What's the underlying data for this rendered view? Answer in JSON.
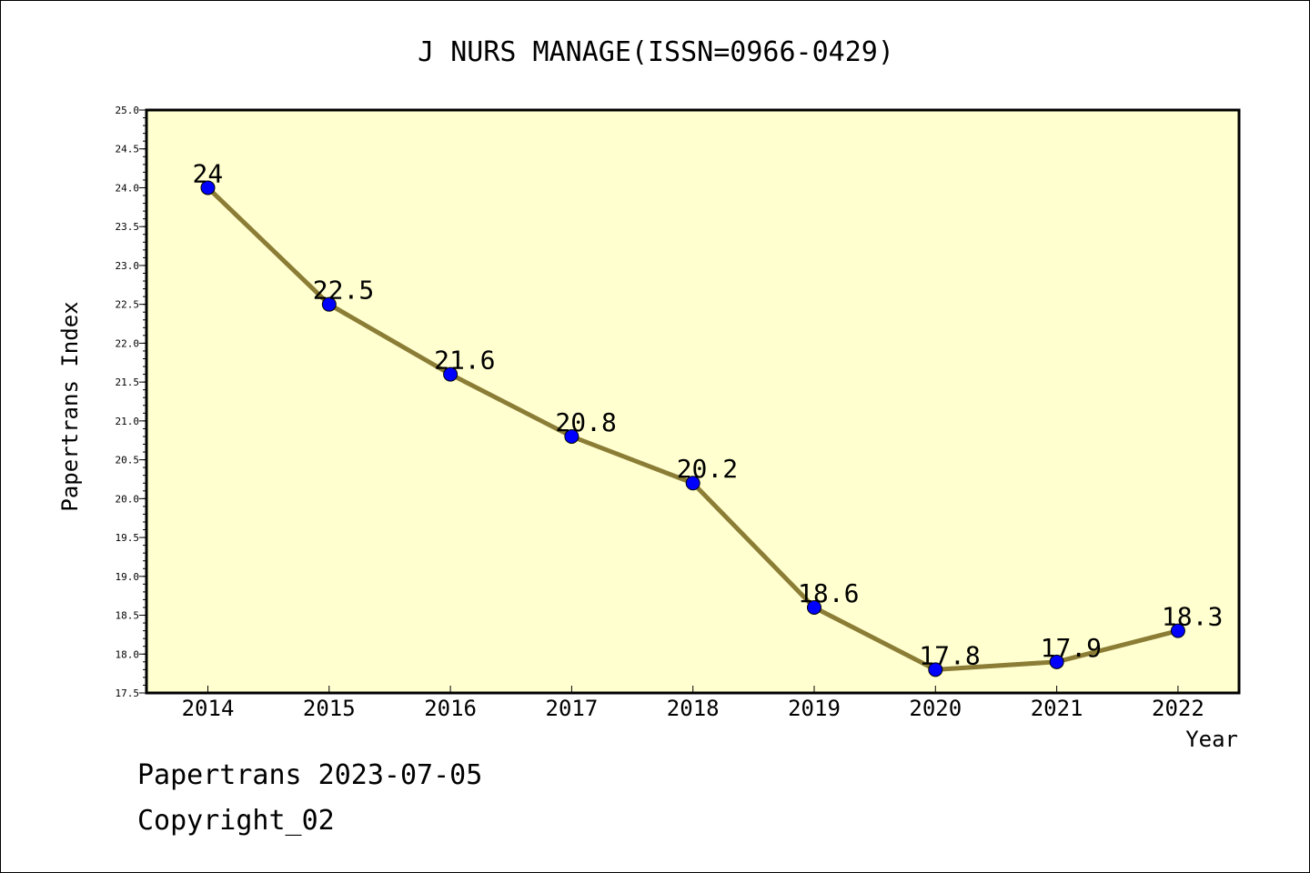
{
  "chart_data": {
    "type": "line",
    "title": "J NURS MANAGE(ISSN=0966-0429)",
    "xlabel": "Year",
    "ylabel": "Papertrans Index",
    "categories": [
      "2014",
      "2015",
      "2016",
      "2017",
      "2018",
      "2019",
      "2020",
      "2021",
      "2022"
    ],
    "series": [
      {
        "values": [
          24,
          22.5,
          21.6,
          20.8,
          20.2,
          18.6,
          17.8,
          17.9,
          18.3
        ]
      }
    ],
    "data_labels": [
      "24",
      "22.5",
      "21.6",
      "20.8",
      "20.2",
      "18.6",
      "17.8",
      "17.9",
      "18.3"
    ],
    "ylim": [
      17.5,
      25.0
    ],
    "yticks": [
      "17.5",
      "18.0",
      "18.5",
      "19.0",
      "19.5",
      "20.0",
      "20.5",
      "21.0",
      "21.5",
      "22.0",
      "22.5",
      "23.0",
      "23.5",
      "24.0",
      "24.5",
      "25.0"
    ],
    "grid": false,
    "legend": "none",
    "colors": {
      "plot_background": "#ffffd0",
      "line": "#8b7d35",
      "marker": "#0000ff",
      "axis": "#000000"
    }
  },
  "footer": {
    "line1": "Papertrans 2023-07-05",
    "line2": "Copyright_02"
  }
}
